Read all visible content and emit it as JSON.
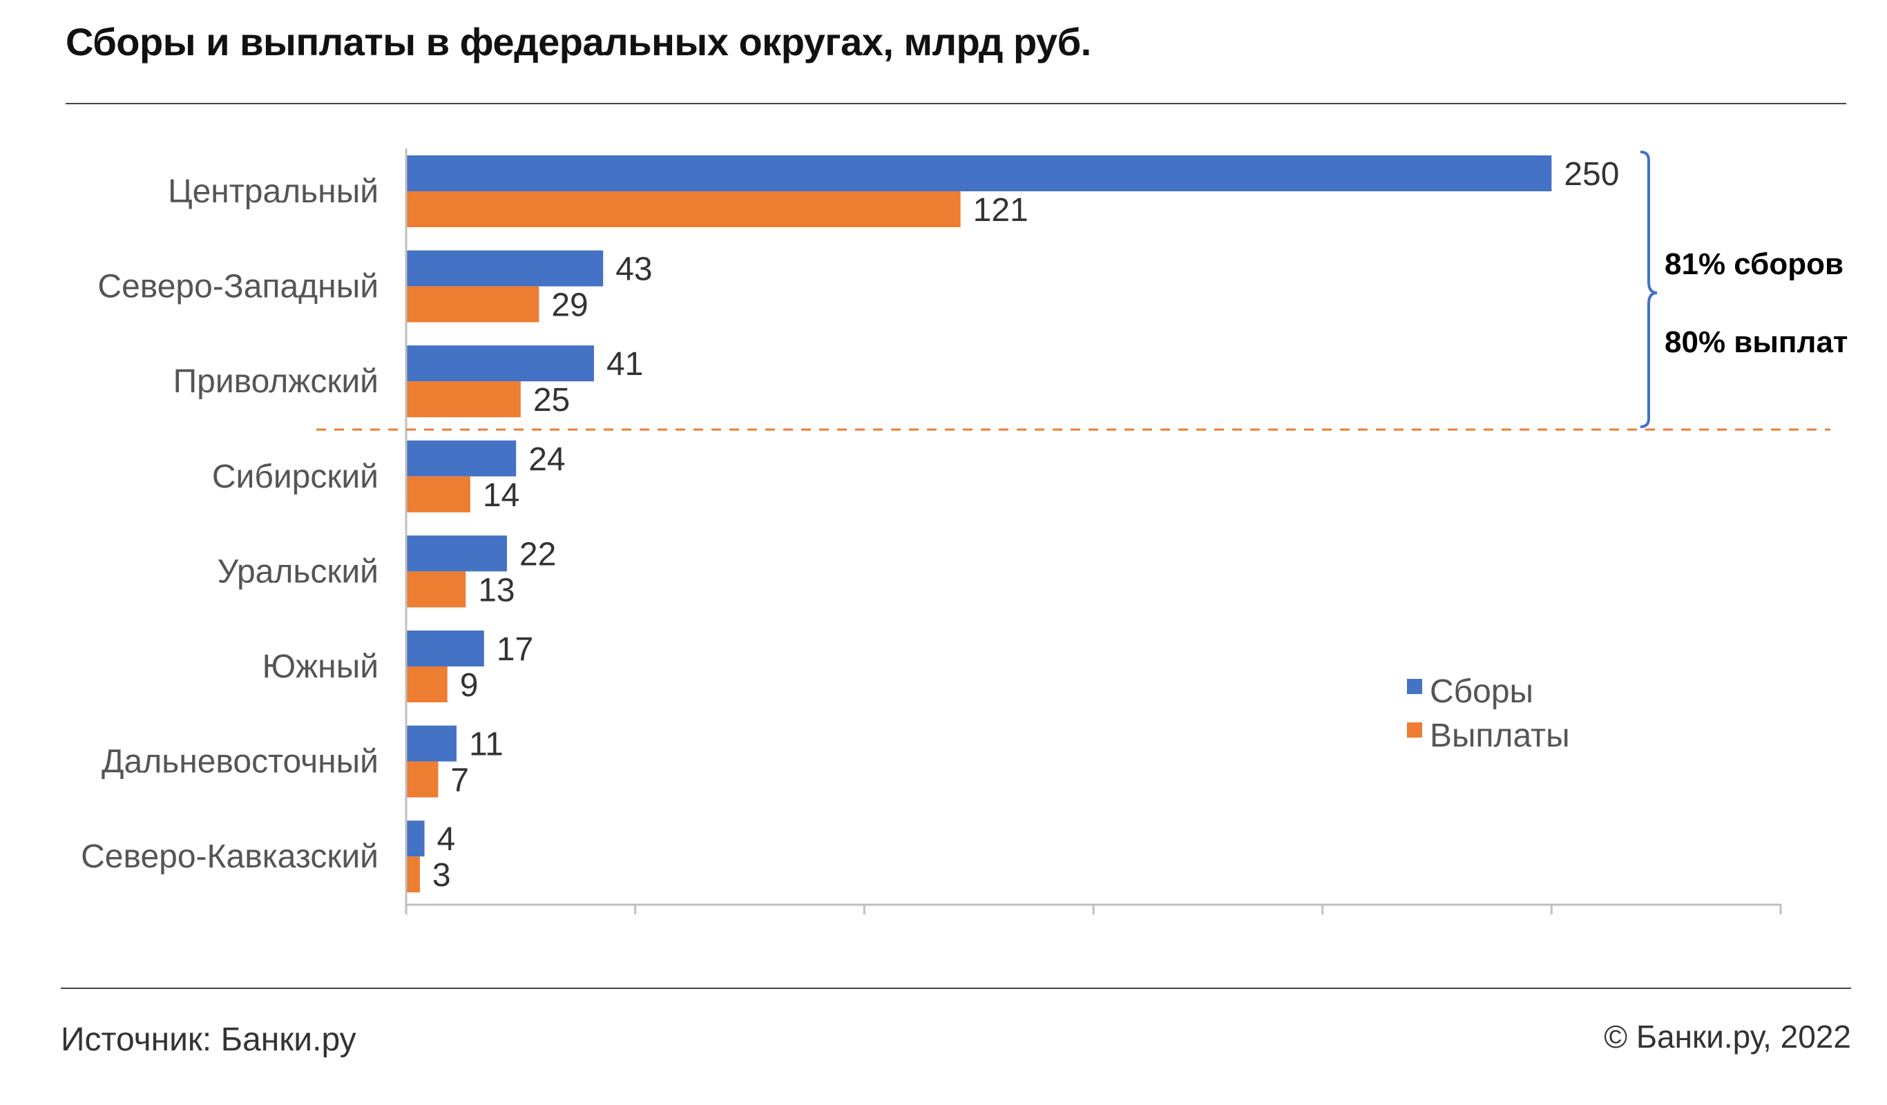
{
  "title": "Сборы и выплаты в федеральных округах, млрд руб.",
  "footer": {
    "source": "Источник: Банки.ру",
    "copyright": "© Банки.ру, 2022"
  },
  "annotation": {
    "collections_share": "81% сборов",
    "payments_share": "80% выплат"
  },
  "colors": {
    "collections": "#4472C4",
    "payments": "#ED7D31"
  },
  "chart_data": {
    "type": "bar",
    "orientation": "horizontal",
    "categories": [
      "Центральный",
      "Северо-Западный",
      "Приволжский",
      "Сибирский",
      "Уральский",
      "Южный",
      "Дальневосточный",
      "Северо-Кавказский"
    ],
    "series": [
      {
        "name": "Сборы",
        "values": [
          250,
          43,
          41,
          24,
          22,
          17,
          11,
          4
        ]
      },
      {
        "name": "Выплаты",
        "values": [
          121,
          29,
          25,
          14,
          13,
          9,
          7,
          3
        ]
      }
    ],
    "xlim": [
      0,
      300
    ],
    "grid": false,
    "legend": "bottom-right"
  }
}
